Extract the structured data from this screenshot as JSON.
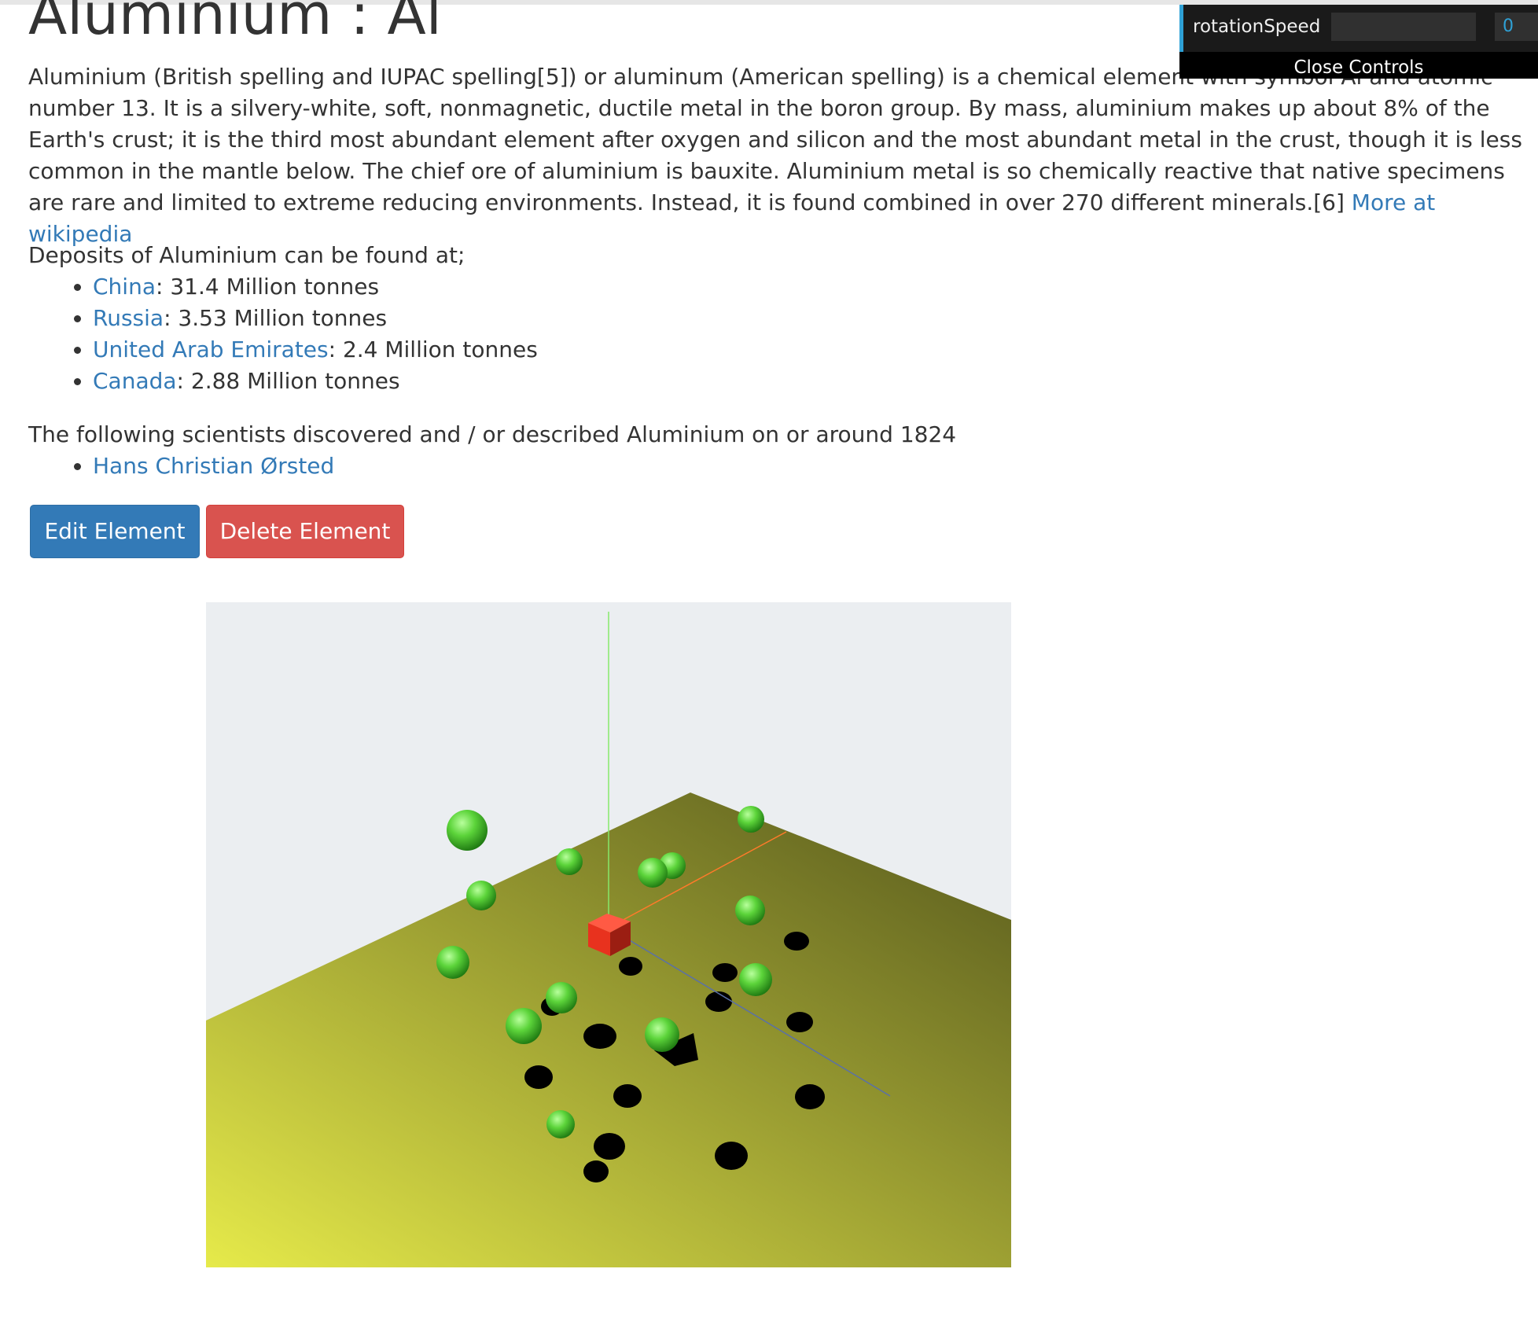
{
  "page": {
    "title": "Aluminium : Al",
    "description": "Aluminium (British spelling and IUPAC spelling[5]) or aluminum (American spelling) is a chemical element with symbol Al and atomic number 13. It is a silvery-white, soft, nonmagnetic, ductile metal in the boron group. By mass, aluminium makes up about 8% of the Earth's crust; it is the third most abundant element after oxygen and silicon and the most abundant metal in the crust, though it is less common in the mantle below. The chief ore of aluminium is bauxite. Aluminium metal is so chemically reactive that native specimens are rare and limited to extreme reducing environments. Instead, it is found combined in over 270 different minerals.[6]",
    "wiki_link": "More at wikipedia"
  },
  "deposits": {
    "heading": "Deposits of Aluminium can be found at;",
    "items": [
      {
        "country": "China",
        "amount": ": 31.4 Million tonnes"
      },
      {
        "country": "Russia",
        "amount": ": 3.53 Million tonnes"
      },
      {
        "country": "United Arab Emirates",
        "amount": ": 2.4 Million tonnes"
      },
      {
        "country": "Canada",
        "amount": ": 2.88 Million tonnes"
      }
    ]
  },
  "scientists": {
    "heading": "The following scientists discovered and / or described Aluminium on or around 1824",
    "items": [
      {
        "name": "Hans Christian Ørsted"
      }
    ]
  },
  "actions": {
    "edit_label": "Edit Element",
    "delete_label": "Delete Element",
    "edit_color": "#337ab7",
    "delete_color": "#d9534f"
  },
  "controls": {
    "param_label": "rotationSpeed",
    "param_value": "0",
    "param_fraction": 0,
    "close_label": "Close Controls",
    "accent_color": "#2fa1d6"
  },
  "scene": {
    "background_color": "#ebeef1",
    "floor_near_color": "#e6ea4a",
    "floor_far_color": "#55571c",
    "sphere_color": "#5cd43a",
    "cube_color": "#e8321e",
    "shadow_color": "#000000",
    "axis_colors": {
      "x": "#ff7a2a",
      "y": "#86e86a",
      "z": "#5a70a8"
    }
  }
}
